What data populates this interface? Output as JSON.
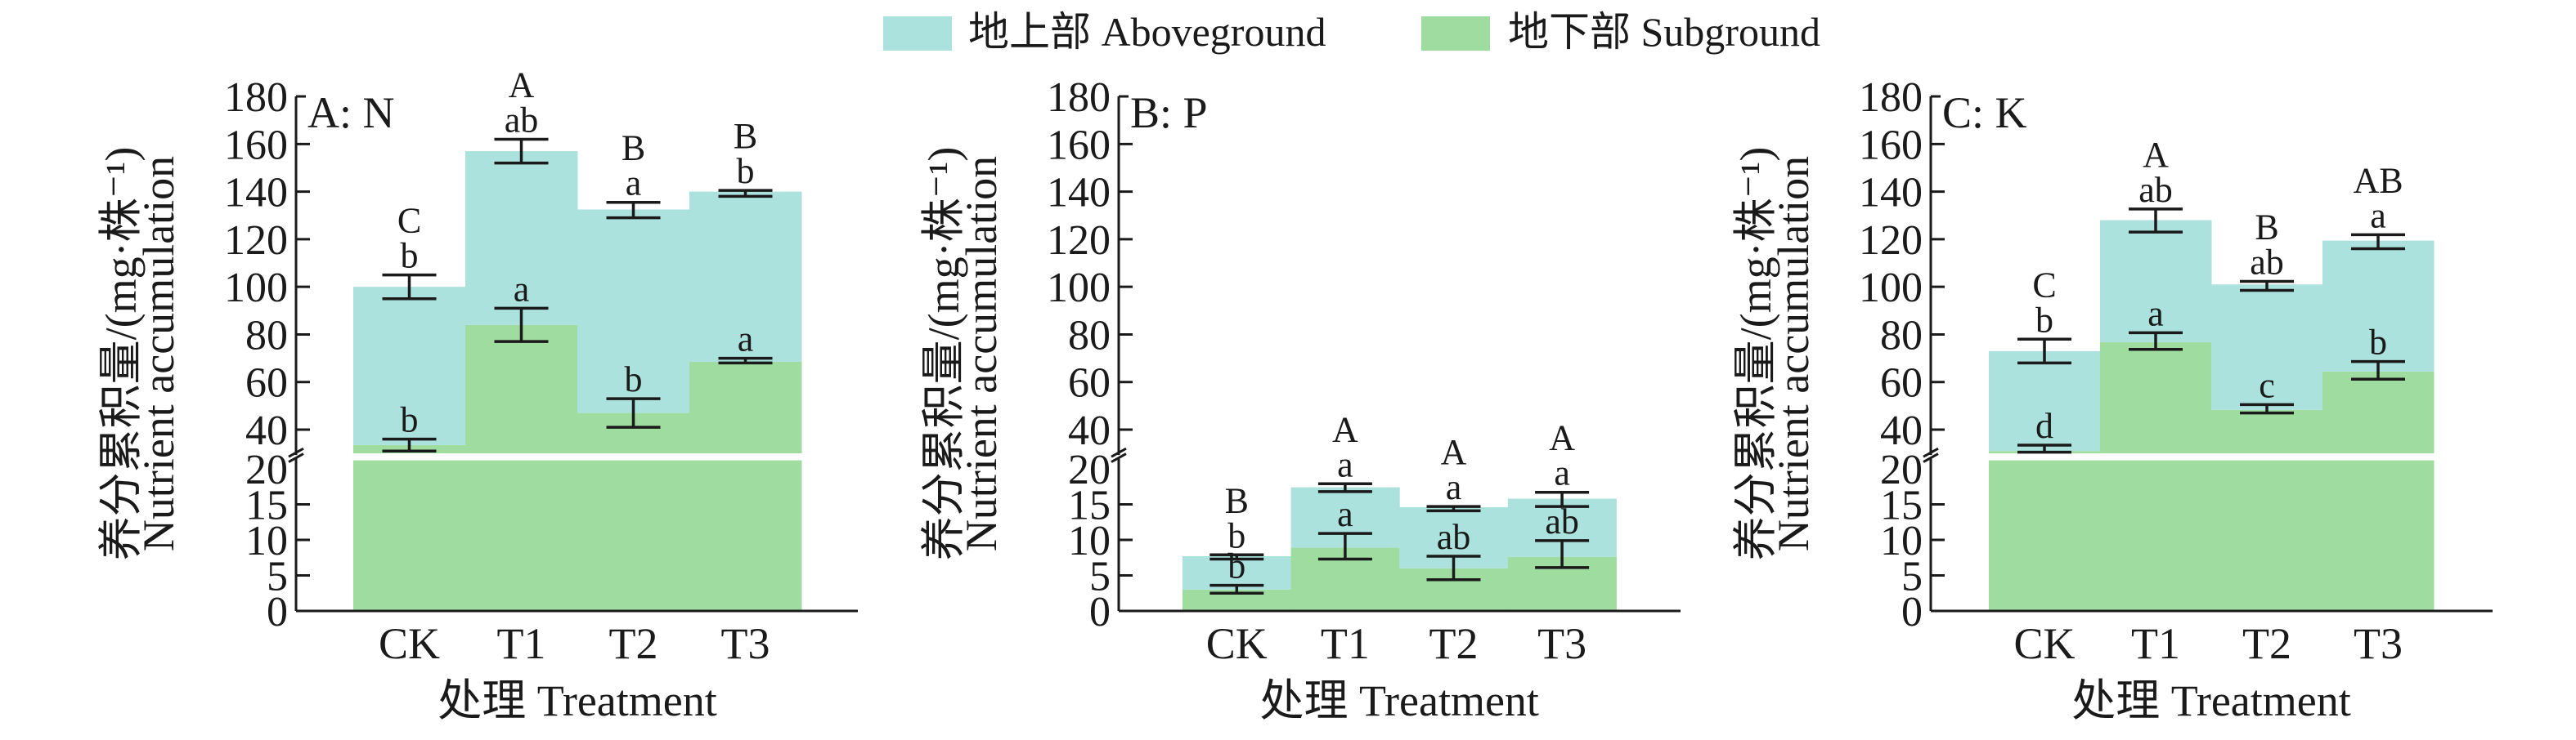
{
  "legend": {
    "aboveground": "地上部 Aboveground",
    "subground": "地下部 Subground"
  },
  "colors": {
    "aboveground": "#abe2de",
    "subground": "#9fdc9f",
    "axis": "#1a1a1a"
  },
  "chart_data": [
    {
      "type": "bar",
      "stacked": true,
      "panel_label": "A: N",
      "categories": [
        "CK",
        "T1",
        "T2",
        "T3"
      ],
      "xlabel": "处理 Treatment",
      "ylabel_cn": "养分累积量/(mg·株⁻¹)",
      "ylabel_en": "Nutrient accumulation",
      "y_upper_ticks": [
        "40",
        "60",
        "80",
        "100",
        "120",
        "140",
        "160",
        "180"
      ],
      "y_lower_ticks": [
        "0",
        "5",
        "10",
        "15",
        "20"
      ],
      "axis_break": [
        21,
        30
      ],
      "ylim": [
        0,
        180
      ],
      "series": [
        {
          "name": "地下部 Subground",
          "values": [
            33.5,
            84,
            47,
            68.5
          ],
          "err_low": [
            31,
            77,
            41,
            68
          ],
          "err_high": [
            36,
            91,
            53,
            70
          ],
          "letters": [
            "b",
            "a",
            "b",
            "a"
          ]
        },
        {
          "name": "地上部 Aboveground (total)",
          "values": [
            100,
            157,
            132.5,
            140
          ],
          "err_low": [
            95,
            152,
            129,
            138
          ],
          "err_high": [
            105,
            162,
            135.5,
            140.5
          ],
          "letters": [
            "b",
            "ab",
            "a",
            "b"
          ],
          "group_letters": [
            "C",
            "A",
            "B",
            "B"
          ]
        }
      ]
    },
    {
      "type": "bar",
      "stacked": true,
      "panel_label": "B: P",
      "categories": [
        "CK",
        "T1",
        "T2",
        "T3"
      ],
      "xlabel": "处理 Treatment",
      "ylabel_cn": "养分累积量/(mg·株⁻¹)",
      "ylabel_en": "Nutrient accumulation",
      "y_upper_ticks": [
        "40",
        "60",
        "80",
        "100",
        "120",
        "140",
        "160",
        "180"
      ],
      "y_lower_ticks": [
        "0",
        "5",
        "10",
        "15",
        "20"
      ],
      "axis_break": [
        21,
        30
      ],
      "ylim": [
        0,
        180
      ],
      "series": [
        {
          "name": "地下部 Subground",
          "values": [
            3.0,
            8.9,
            6.0,
            7.6
          ],
          "err_low": [
            2.5,
            7.3,
            4.4,
            6.1
          ],
          "err_high": [
            3.6,
            10.9,
            7.7,
            9.9
          ],
          "letters": [
            "b",
            "a",
            "ab",
            "ab"
          ]
        },
        {
          "name": "地上部 Aboveground (total)",
          "values": [
            7.7,
            17.4,
            14.6,
            15.8
          ],
          "err_low": [
            7.3,
            16.8,
            14.1,
            14.7
          ],
          "err_high": [
            7.9,
            17.9,
            14.7,
            16.7
          ],
          "letters": [
            "b",
            "a",
            "a",
            "a"
          ],
          "group_letters": [
            "B",
            "A",
            "A",
            "A"
          ]
        }
      ]
    },
    {
      "type": "bar",
      "stacked": true,
      "panel_label": "C: K",
      "categories": [
        "CK",
        "T1",
        "T2",
        "T3"
      ],
      "xlabel": "处理 Treatment",
      "ylabel_cn": "养分累积量/(mg·株⁻¹)",
      "ylabel_en": "Nutrient accumulation",
      "y_upper_ticks": [
        "40",
        "60",
        "80",
        "100",
        "120",
        "140",
        "160",
        "180"
      ],
      "y_lower_ticks": [
        "0",
        "5",
        "10",
        "15",
        "20"
      ],
      "axis_break": [
        21,
        30
      ],
      "ylim": [
        0,
        180
      ],
      "series": [
        {
          "name": "地下部 Subground",
          "values": [
            31,
            76.7,
            48.3,
            64.4
          ],
          "err_low": [
            30.5,
            73.7,
            47,
            61.2
          ],
          "err_high": [
            33.5,
            80.7,
            50.5,
            68.6
          ],
          "letters": [
            "d",
            "a",
            "c",
            "b"
          ]
        },
        {
          "name": "地上部 Aboveground (total)",
          "values": [
            73,
            128,
            101,
            119.4
          ],
          "err_low": [
            68,
            123,
            98.5,
            116
          ],
          "err_high": [
            78,
            132.7,
            102.3,
            121.9
          ],
          "letters": [
            "b",
            "ab",
            "ab",
            "a"
          ],
          "group_letters": [
            "C",
            "A",
            "B",
            "AB"
          ]
        }
      ]
    }
  ]
}
